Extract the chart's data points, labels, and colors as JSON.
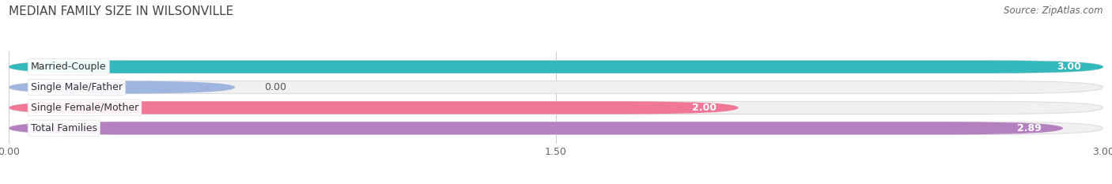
{
  "title": "MEDIAN FAMILY SIZE IN WILSONVILLE",
  "source": "Source: ZipAtlas.com",
  "categories": [
    "Married-Couple",
    "Single Male/Father",
    "Single Female/Mother",
    "Total Families"
  ],
  "values": [
    3.0,
    0.0,
    2.0,
    2.89
  ],
  "bar_colors": [
    "#33b8bc",
    "#a0b4e0",
    "#f07896",
    "#b480c0"
  ],
  "xlim": [
    0,
    3.0
  ],
  "xticks": [
    0.0,
    1.5,
    3.0
  ],
  "xtick_labels": [
    "0.00",
    "1.50",
    "3.00"
  ],
  "value_labels": [
    "3.00",
    "0.00",
    "2.00",
    "2.89"
  ],
  "title_fontsize": 11,
  "source_fontsize": 8.5,
  "label_fontsize": 9,
  "tick_fontsize": 9,
  "bar_height": 0.62,
  "background_color": "#ffffff",
  "bar_bg_color": "#f0f0f0",
  "bar_container_color": "#e8e8e8"
}
